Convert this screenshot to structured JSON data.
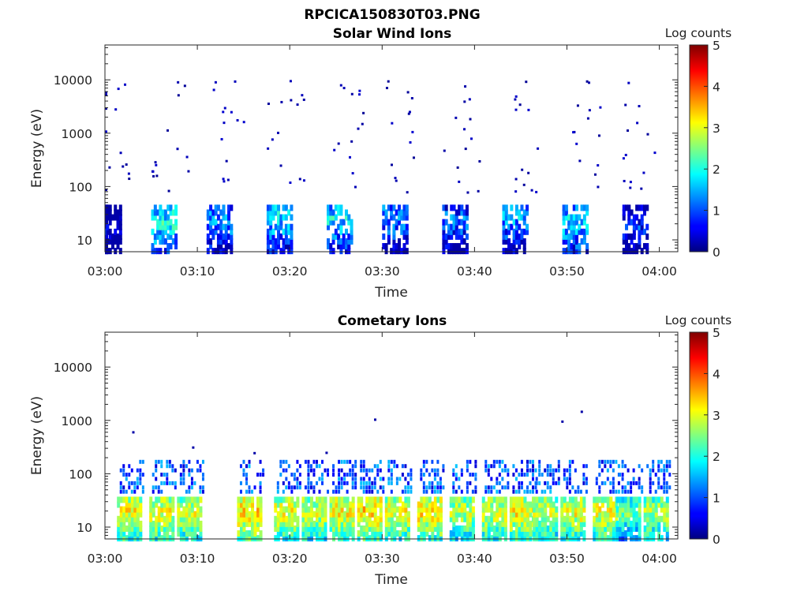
{
  "figure_title": "RPCICA150830T03.PNG",
  "chart_data": [
    {
      "type": "heatmap",
      "title": "Solar Wind Ions",
      "xlabel": "Time",
      "ylabel": "Energy (eV)",
      "x_ticks": [
        "03:00",
        "03:10",
        "03:20",
        "03:30",
        "03:40",
        "03:50",
        "04:00"
      ],
      "xlim_minutes": [
        0,
        62
      ],
      "y_scale": "log",
      "y_ticks": [
        "10",
        "100",
        "1000",
        "10000"
      ],
      "ylim": [
        6,
        45000
      ],
      "colorbar": {
        "label": "Log counts",
        "ticks": [
          "0",
          "1",
          "2",
          "3",
          "4",
          "5"
        ],
        "range": [
          0,
          5
        ],
        "colormap": "jet"
      },
      "pulses": [
        {
          "t": 0,
          "floor_log": 1.2,
          "peak": 1.0
        },
        {
          "t": 6,
          "floor_log": 1.4,
          "peak": 2.5
        },
        {
          "t": 12,
          "floor_log": 1.4,
          "peak": 2.0
        },
        {
          "t": 18.5,
          "floor_log": 1.5,
          "peak": 2.4
        },
        {
          "t": 25,
          "floor_log": 1.5,
          "peak": 2.4
        },
        {
          "t": 31,
          "floor_log": 1.5,
          "peak": 2.0
        },
        {
          "t": 37.5,
          "floor_log": 1.4,
          "peak": 1.8
        },
        {
          "t": 44,
          "floor_log": 1.5,
          "peak": 2.1
        },
        {
          "t": 50.5,
          "floor_log": 1.4,
          "peak": 2.3
        },
        {
          "t": 57,
          "floor_log": 1.3,
          "peak": 1.4
        }
      ]
    },
    {
      "type": "heatmap",
      "title": "Cometary Ions",
      "xlabel": "Time",
      "ylabel": "Energy (eV)",
      "x_ticks": [
        "03:00",
        "03:10",
        "03:20",
        "03:30",
        "03:40",
        "03:50",
        "04:00"
      ],
      "xlim_minutes": [
        0,
        62
      ],
      "y_scale": "log",
      "y_ticks": [
        "10",
        "100",
        "1000",
        "10000"
      ],
      "ylim": [
        6,
        45000
      ],
      "colorbar": {
        "label": "Log counts",
        "ticks": [
          "0",
          "1",
          "2",
          "3",
          "4",
          "5"
        ],
        "range": [
          0,
          5
        ],
        "colormap": "jet"
      },
      "pulses": [
        {
          "t": 2.5,
          "peak": 3.7
        },
        {
          "t": 6,
          "peak": 3.6
        },
        {
          "t": 9,
          "peak": 3.5
        },
        {
          "t": 15.5,
          "peak": 3.9
        },
        {
          "t": 19.5,
          "peak": 3.6
        },
        {
          "t": 22.5,
          "peak": 3.5
        },
        {
          "t": 25.5,
          "peak": 3.7
        },
        {
          "t": 28.5,
          "peak": 3.9
        },
        {
          "t": 31.5,
          "peak": 3.6
        },
        {
          "t": 35,
          "peak": 3.8
        },
        {
          "t": 38.5,
          "peak": 3.4
        },
        {
          "t": 42,
          "peak": 3.5
        },
        {
          "t": 45,
          "peak": 3.7
        },
        {
          "t": 47.5,
          "peak": 3.4
        },
        {
          "t": 50.5,
          "peak": 3.6
        },
        {
          "t": 54,
          "peak": 3.6
        },
        {
          "t": 56.5,
          "peak": 3.0
        },
        {
          "t": 59.5,
          "peak": 3.3
        }
      ]
    }
  ]
}
